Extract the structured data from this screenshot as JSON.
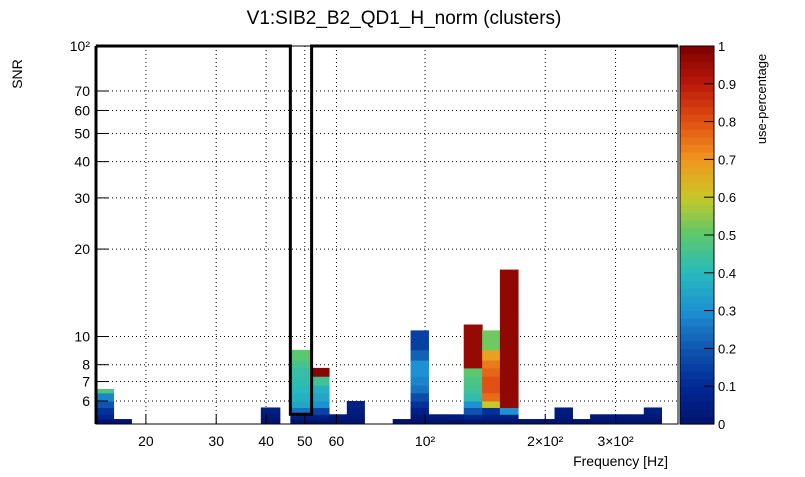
{
  "chart_data": {
    "type": "heatmap",
    "title": "V1:SIB2_B2_QD1_H_norm (clusters)",
    "xlabel": "Frequency [Hz]",
    "ylabel": "SNR",
    "zlabel": "use-percentage",
    "x_scale": "log",
    "y_scale": "log",
    "xlim": [
      15,
      430
    ],
    "ylim": [
      5,
      100
    ],
    "zlim": [
      0,
      1
    ],
    "x_ticks": [
      {
        "value": 20,
        "label": "20"
      },
      {
        "value": 30,
        "label": "30"
      },
      {
        "value": 40,
        "label": "40"
      },
      {
        "value": 50,
        "label": "50"
      },
      {
        "value": 60,
        "label": "60"
      },
      {
        "value": 100,
        "label": "10²"
      },
      {
        "value": 200,
        "label": "2×10²"
      },
      {
        "value": 300,
        "label": "3×10²"
      }
    ],
    "y_ticks": [
      {
        "value": 6,
        "label": "6"
      },
      {
        "value": 7,
        "label": "7"
      },
      {
        "value": 8,
        "label": "8"
      },
      {
        "value": 10,
        "label": "10"
      },
      {
        "value": 20,
        "label": "20"
      },
      {
        "value": 30,
        "label": "30"
      },
      {
        "value": 40,
        "label": "40"
      },
      {
        "value": 50,
        "label": "50"
      },
      {
        "value": 60,
        "label": "60"
      },
      {
        "value": 70,
        "label": "70"
      },
      {
        "value": 100,
        "label": "10²"
      }
    ],
    "z_ticks": [
      "0",
      "0.1",
      "0.2",
      "0.3",
      "0.4",
      "0.5",
      "0.6",
      "0.7",
      "0.8",
      "0.9",
      "1"
    ],
    "y_bin_edges": [
      5,
      5.2,
      5.4,
      5.7,
      6.0,
      6.4,
      6.8,
      7.3,
      7.8,
      8.3,
      9.0,
      10.5,
      12.0,
      18.0
    ],
    "columns": [
      {
        "x0": 15.0,
        "x1": 16.6,
        "top": 6.6,
        "cells": [
          0.0,
          0.08,
          0.12,
          0.2,
          0.28,
          0.48
        ]
      },
      {
        "x0": 16.6,
        "x1": 18.4,
        "top": 5.2,
        "cells": [
          0.0
        ]
      },
      {
        "x0": 38.8,
        "x1": 43.3,
        "top": 5.7,
        "cells": [
          0.0,
          0.02,
          0.04
        ]
      },
      {
        "x0": 46.0,
        "x1": 51.9,
        "top": 9.0,
        "cells": [
          0.0,
          0.05,
          0.25,
          0.35,
          0.38,
          0.4,
          0.42,
          0.43,
          0.46,
          0.5
        ]
      },
      {
        "x0": 51.9,
        "x1": 57.5,
        "top": 7.8,
        "cells": [
          0.0,
          0.06,
          0.16,
          0.3,
          0.35,
          0.38,
          0.45,
          0.98
        ]
      },
      {
        "x0": 57.5,
        "x1": 63.7,
        "top": 5.4,
        "cells": [
          0.0,
          0.02
        ]
      },
      {
        "x0": 63.7,
        "x1": 70.5,
        "top": 6.0,
        "cells": [
          0.0,
          0.02,
          0.04,
          0.06
        ]
      },
      {
        "x0": 83.0,
        "x1": 92.0,
        "top": 5.2,
        "cells": [
          0.0
        ]
      },
      {
        "x0": 92.0,
        "x1": 102.0,
        "top": 10.5,
        "cells": [
          0.0,
          0.02,
          0.06,
          0.12,
          0.18,
          0.25,
          0.28,
          0.3,
          0.3,
          0.22,
          0.15
        ]
      },
      {
        "x0": 102.0,
        "x1": 113.0,
        "top": 5.4,
        "cells": [
          0.0,
          0.03
        ]
      },
      {
        "x0": 113.0,
        "x1": 125.0,
        "top": 5.4,
        "cells": [
          0.0,
          0.04
        ]
      },
      {
        "x0": 125.0,
        "x1": 139.0,
        "top": 11.0,
        "cells": [
          0.0,
          0.08,
          0.2,
          0.3,
          0.42,
          0.45,
          0.47,
          0.5,
          0.96,
          0.96,
          0.96,
          0.96
        ]
      },
      {
        "x0": 139.0,
        "x1": 154.0,
        "top": 10.5,
        "cells": [
          0.0,
          0.06,
          0.12,
          0.6,
          0.76,
          0.8,
          0.8,
          0.77,
          0.74,
          0.68,
          0.52
        ]
      },
      {
        "x0": 154.0,
        "x1": 171.0,
        "top": 17.0,
        "cells": [
          0.0,
          0.05,
          0.3,
          0.97,
          0.97,
          0.97,
          0.97,
          0.97,
          0.97,
          0.97,
          0.97,
          0.97,
          0.97
        ]
      },
      {
        "x0": 171.0,
        "x1": 190.0,
        "top": 5.2,
        "cells": [
          0.0
        ]
      },
      {
        "x0": 190.0,
        "x1": 211.0,
        "top": 5.2,
        "cells": [
          0.0
        ]
      },
      {
        "x0": 211.0,
        "x1": 234.0,
        "top": 5.7,
        "cells": [
          0.0,
          0.02,
          0.04
        ]
      },
      {
        "x0": 234.0,
        "x1": 259.0,
        "top": 5.2,
        "cells": [
          0.0
        ]
      },
      {
        "x0": 259.0,
        "x1": 287.0,
        "top": 5.4,
        "cells": [
          0.0,
          0.02
        ]
      },
      {
        "x0": 287.0,
        "x1": 319.0,
        "top": 5.4,
        "cells": [
          0.0,
          0.02
        ]
      },
      {
        "x0": 319.0,
        "x1": 353.0,
        "top": 5.4,
        "cells": [
          0.0,
          0.02
        ]
      },
      {
        "x0": 353.0,
        "x1": 391.0,
        "top": 5.7,
        "cells": [
          0.0,
          0.03,
          0.05
        ]
      }
    ],
    "outline_region": {
      "x_gap": [
        46.0,
        52.0
      ],
      "y_range": [
        5.4,
        100
      ]
    }
  }
}
